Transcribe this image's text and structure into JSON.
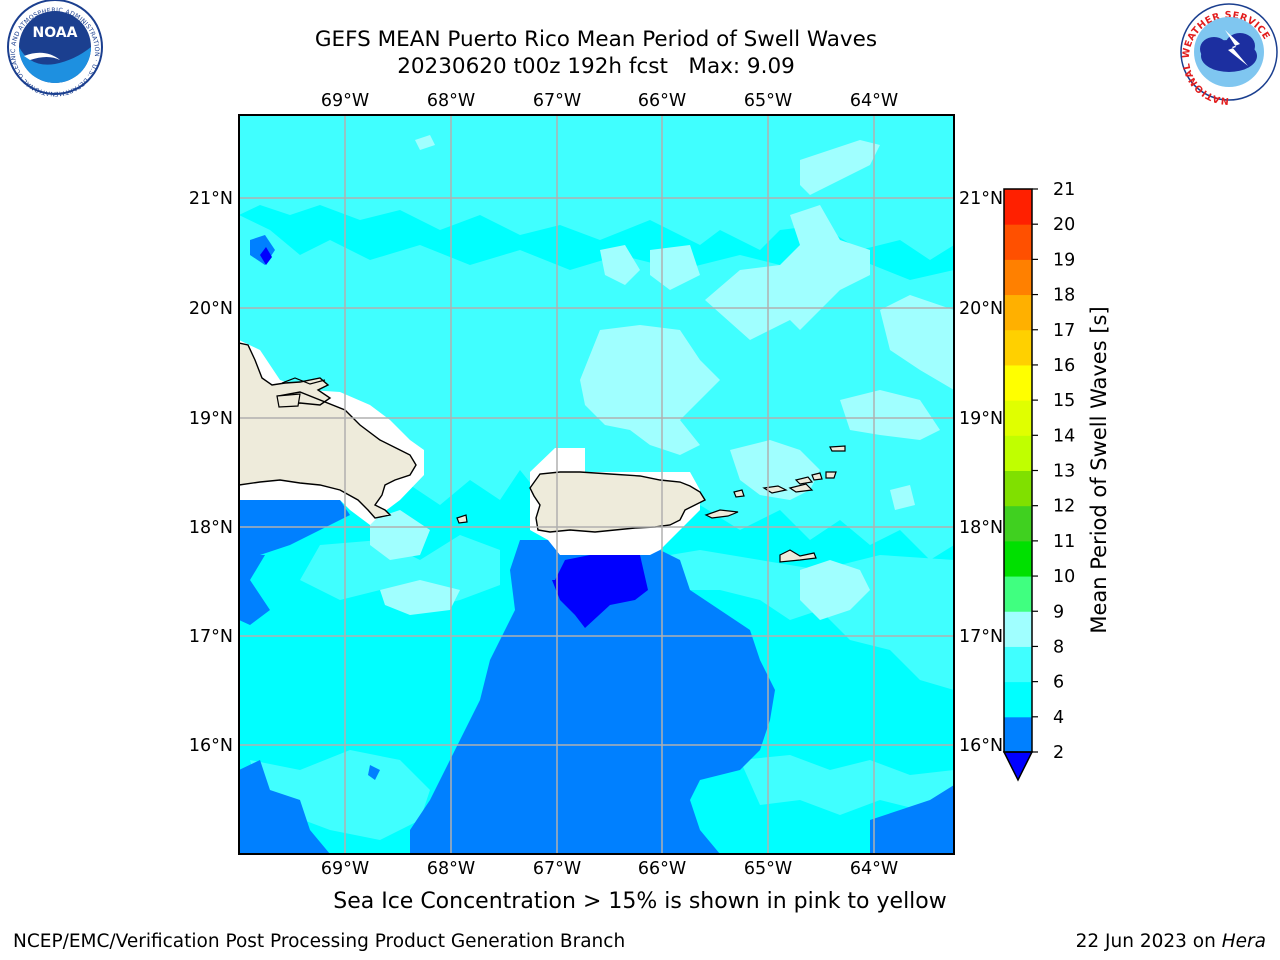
{
  "header": {
    "title_line1": "GEFS MEAN Puerto Rico Mean Period of Swell Waves",
    "title_line2": "20230620 t00z 192h fcst   Max: 9.09"
  },
  "logos": {
    "noaa": {
      "label": "NOAA",
      "ring_text": "NATIONAL OCEANIC AND ATMOSPHERIC ADMINISTRATION · U.S. DEPARTMENT OF COMMERCE"
    },
    "nws": {
      "ring_text": "NATIONAL WEATHER SERVICE"
    }
  },
  "map": {
    "lon_ticks": [
      "69°W",
      "68°W",
      "67°W",
      "66°W",
      "65°W",
      "64°W"
    ],
    "lat_ticks": [
      "21°N",
      "20°N",
      "19°N",
      "18°N",
      "17°N",
      "16°N"
    ],
    "extent": {
      "lon_min": -70.0,
      "lon_max": -63.25,
      "lat_min": 15.0,
      "lat_max": 21.75
    },
    "colors": {
      "land": "#eeebdb",
      "ocean_4_6": "#00ffff",
      "ocean_6_8": "#40ffff",
      "ocean_8_9": "#a0ffff",
      "ocean_2_4": "#0080ff",
      "ocean_lt_2": "#0000ff",
      "grid": "#b0b0b0"
    }
  },
  "colorbar": {
    "label": "Mean Period of Swell Waves [s]",
    "ticks": [
      "2",
      "4",
      "6",
      "8",
      "9",
      "10",
      "11",
      "12",
      "13",
      "14",
      "15",
      "16",
      "17",
      "18",
      "19",
      "20",
      "21"
    ],
    "colors": [
      "#0080ff",
      "#00ffff",
      "#40ffff",
      "#a0ffff",
      "#40ff80",
      "#00e000",
      "#40d020",
      "#80e000",
      "#c0ff00",
      "#e0ff00",
      "#ffff00",
      "#ffd000",
      "#ffb000",
      "#ff8000",
      "#ff5000",
      "#ff2000"
    ],
    "extend_color": "#0000ff"
  },
  "note": "Sea Ice Concentration > 15% is shown in pink to yellow",
  "footer": {
    "left": "NCEP/EMC/Verification Post Processing Product Generation Branch",
    "date": "22 Jun 2023 on ",
    "host": "Hera"
  }
}
